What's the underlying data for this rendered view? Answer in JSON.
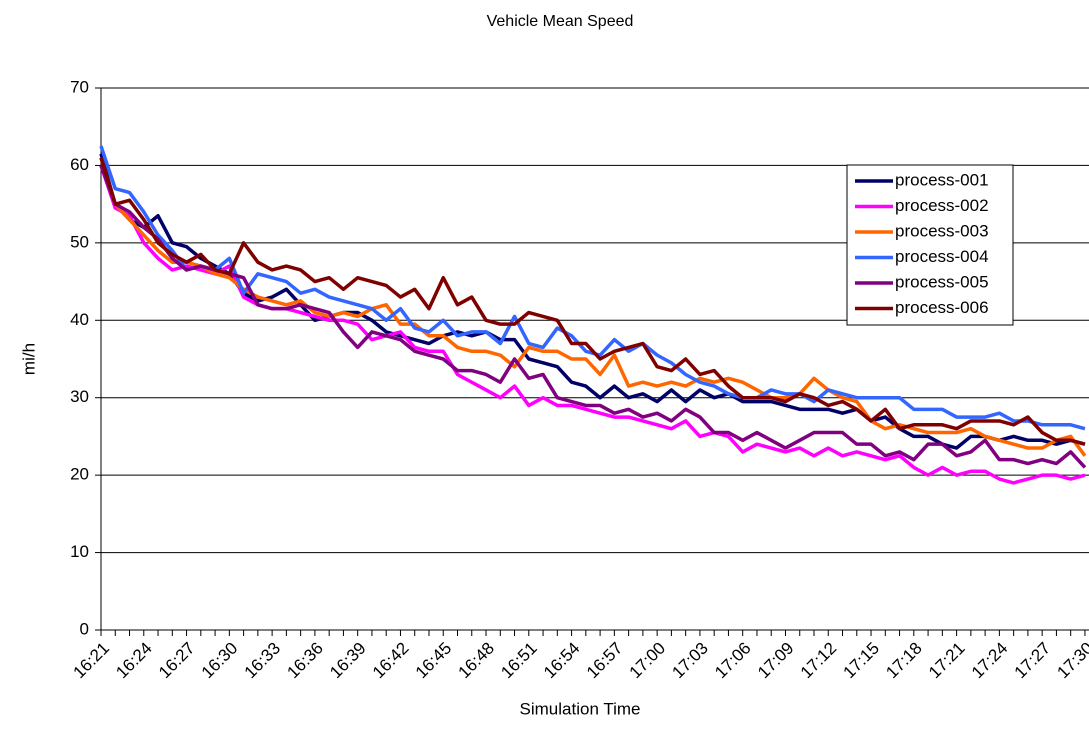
{
  "chart_data": {
    "type": "line",
    "title": "Vehicle Mean Speed",
    "xlabel": "Simulation Time",
    "ylabel": "mi/h",
    "categories": [
      "16:21",
      null,
      null,
      "16:24",
      null,
      null,
      "16:27",
      null,
      null,
      "16:30",
      null,
      null,
      "16:33",
      null,
      null,
      "16:36",
      null,
      null,
      "16:39",
      null,
      null,
      "16:42",
      null,
      null,
      "16:45",
      null,
      null,
      "16:48",
      null,
      null,
      "16:51",
      null,
      null,
      "16:54",
      null,
      null,
      "16:57",
      null,
      null,
      "17:00",
      null,
      null,
      "17:03",
      null,
      null,
      "17:06",
      null,
      null,
      "17:09",
      null,
      null,
      "17:12",
      null,
      null,
      "17:15",
      null,
      null,
      "17:18",
      null,
      null,
      "17:21",
      null,
      null,
      "17:24",
      null,
      null,
      "17:27",
      null,
      null,
      "17:30"
    ],
    "ylim": [
      0,
      70
    ],
    "yticks": [
      0,
      10,
      20,
      30,
      40,
      50,
      60,
      70
    ],
    "grid": true,
    "legend": "upper right",
    "series": [
      {
        "name": "process-001",
        "color": "#000066",
        "values": [
          61.5,
          55,
          53,
          52,
          53.5,
          50,
          49.5,
          48,
          47,
          46,
          43.5,
          42.5,
          43,
          44,
          42,
          40,
          40.5,
          41,
          41,
          40,
          38.5,
          38,
          37.5,
          37,
          38,
          38.5,
          38,
          38.5,
          37.5,
          37.5,
          35,
          34.5,
          34,
          32,
          31.5,
          30,
          31.5,
          30,
          30.5,
          29.5,
          31,
          29.5,
          31,
          30,
          30.5,
          29.5,
          29.5,
          29.5,
          29,
          28.5,
          28.5,
          28.5,
          28,
          28.5,
          27,
          27.5,
          26,
          25,
          25,
          24,
          23.5,
          25,
          25,
          24.5,
          25,
          24.5,
          24.5,
          24,
          24.5,
          24
        ]
      },
      {
        "name": "process-002",
        "color": "#ff00ff",
        "values": [
          60,
          54.5,
          53.5,
          50,
          48,
          46.5,
          47,
          46.5,
          46,
          47,
          43,
          42,
          41.5,
          41.5,
          41,
          40.5,
          40,
          40,
          39.5,
          37.5,
          38,
          38.5,
          36.5,
          36,
          36,
          33,
          32,
          31,
          30,
          31.5,
          29,
          30,
          29,
          29,
          28.5,
          28,
          27.5,
          27.5,
          27,
          26.5,
          26,
          27,
          25,
          25.5,
          25,
          23,
          24,
          23.5,
          23,
          23.5,
          22.5,
          23.5,
          22.5,
          23,
          22.5,
          22,
          22.5,
          21,
          20,
          21,
          20,
          20.5,
          20.5,
          19.5,
          19,
          19.5,
          20,
          20,
          19.5,
          20
        ]
      },
      {
        "name": "process-003",
        "color": "#ff6600",
        "values": [
          61,
          55,
          53,
          51,
          49,
          47.5,
          47.5,
          47,
          46,
          45.5,
          44,
          43,
          42.5,
          42,
          42.5,
          41,
          40.5,
          41,
          40.5,
          41.5,
          42,
          39.5,
          39.5,
          38,
          38,
          36.5,
          36,
          36,
          35.5,
          34,
          36.5,
          36,
          36,
          35,
          35,
          33,
          35.5,
          31.5,
          32,
          31.5,
          32,
          31.5,
          32.5,
          32,
          32.5,
          32,
          31,
          30,
          30,
          30.5,
          32.5,
          31,
          30,
          29.5,
          27,
          26,
          26.5,
          26,
          25.5,
          25.5,
          25.5,
          26,
          25,
          24.5,
          24,
          23.5,
          23.5,
          24.5,
          25,
          22.5
        ]
      },
      {
        "name": "process-004",
        "color": "#3366ff",
        "values": [
          62.5,
          57,
          56.5,
          54,
          51,
          49,
          46.5,
          47,
          46.5,
          48,
          43.5,
          46,
          45.5,
          45,
          43.5,
          44,
          43,
          42.5,
          42,
          41.5,
          40,
          41.5,
          39,
          38.5,
          40,
          38,
          38.5,
          38.5,
          37,
          40.5,
          37,
          36.5,
          39,
          38,
          36,
          35.5,
          37.5,
          36,
          37,
          35.5,
          34.5,
          33,
          32,
          31.5,
          30.5,
          30,
          30,
          31,
          30.5,
          30.5,
          29.5,
          31,
          30.5,
          30,
          30,
          30,
          30,
          28.5,
          28.5,
          28.5,
          27.5,
          27.5,
          27.5,
          28,
          27,
          27,
          26.5,
          26.5,
          26.5,
          26
        ]
      },
      {
        "name": "process-005",
        "color": "#800080",
        "values": [
          60,
          55,
          54,
          52,
          50.5,
          48,
          46.5,
          47,
          46.5,
          46,
          45.5,
          42,
          41.5,
          41.5,
          42,
          41.5,
          41,
          38.5,
          36.5,
          38.5,
          38,
          37.5,
          36,
          35.5,
          35,
          33.5,
          33.5,
          33,
          32,
          35,
          32.5,
          33,
          30,
          29.5,
          29,
          29,
          28,
          28.5,
          27.5,
          28,
          27,
          28.5,
          27.5,
          25.5,
          25.5,
          24.5,
          25.5,
          24.5,
          23.5,
          24.5,
          25.5,
          25.5,
          25.5,
          24,
          24,
          22.5,
          23,
          22,
          24,
          24,
          22.5,
          23,
          24.5,
          22,
          22,
          21.5,
          22,
          21.5,
          23,
          21
        ]
      },
      {
        "name": "process-006",
        "color": "#800000",
        "values": [
          61,
          55,
          55.5,
          53,
          50,
          48.5,
          47.5,
          48.5,
          46.5,
          46,
          50,
          47.5,
          46.5,
          47,
          46.5,
          45,
          45.5,
          44,
          45.5,
          45,
          44.5,
          43,
          44,
          41.5,
          45.5,
          42,
          43,
          40,
          39.5,
          39.5,
          41,
          40.5,
          40,
          37,
          37,
          35,
          36,
          36.5,
          37,
          34,
          33.5,
          35,
          33,
          33.5,
          31.5,
          30,
          30,
          30,
          29.5,
          30.5,
          30,
          29,
          29.5,
          28.5,
          27,
          28.5,
          26,
          26.5,
          26.5,
          26.5,
          26,
          27,
          27,
          27,
          26.5,
          27.5,
          25.5,
          24.5,
          24.5,
          24
        ]
      }
    ]
  }
}
